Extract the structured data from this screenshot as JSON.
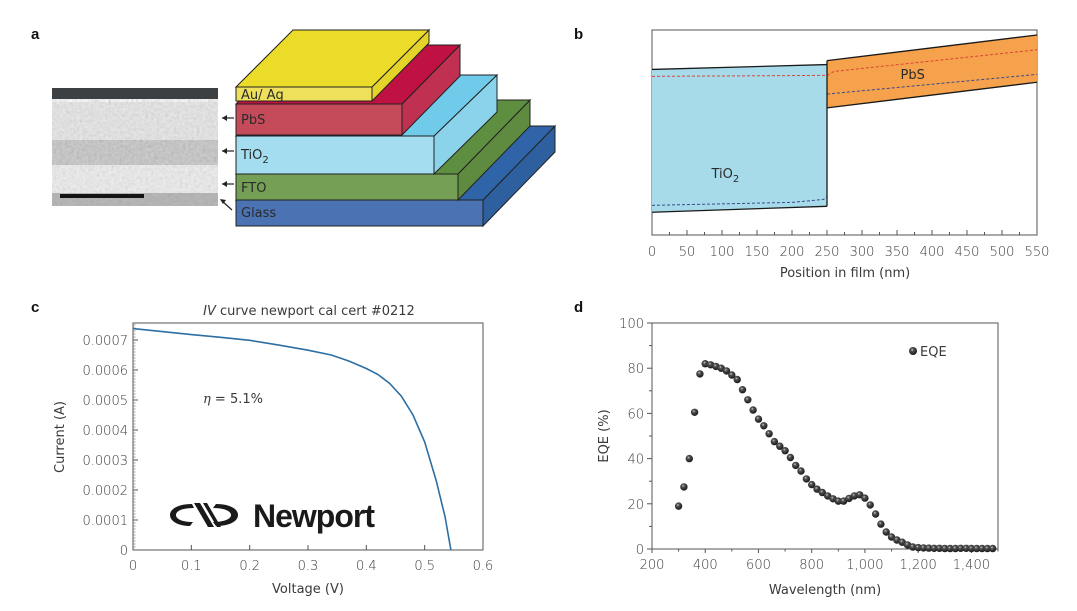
{
  "figure": {
    "panels": [
      "a",
      "b",
      "c",
      "d"
    ]
  },
  "chart_data": [
    {
      "panel": "a",
      "type": "diagram",
      "title": "",
      "description": "SEM cross-section and layered device stack",
      "layers_top_to_bottom": [
        {
          "name": "Au/Ag",
          "label": "Au/ Ag",
          "color": "#eedd2c"
        },
        {
          "name": "PbS",
          "label": "PbS",
          "color": "#c8485a"
        },
        {
          "name": "TiO2",
          "label": "TiO",
          "subscript": "2",
          "color": "#a3dcef"
        },
        {
          "name": "FTO",
          "label": "FTO",
          "color": "#76a157"
        },
        {
          "name": "Glass",
          "label": "Glass",
          "color": "#4a74b3"
        }
      ],
      "sem_arrows": [
        "PbS",
        "TiO2",
        "FTO",
        "Glass"
      ]
    },
    {
      "panel": "b",
      "type": "area",
      "title": "",
      "xlabel": "Position in film (nm)",
      "ylabel": "",
      "xlim": [
        0,
        550
      ],
      "xticks": [
        0,
        50,
        100,
        150,
        200,
        250,
        300,
        350,
        400,
        450,
        500,
        550
      ],
      "regions": [
        {
          "name": "TiO2",
          "label": "TiO",
          "subscript": "2",
          "color": "#a7dbea",
          "x": [
            0,
            250
          ],
          "conduction_band": [
            [
              0,
              0.75
            ],
            [
              250,
              0.8
            ]
          ],
          "valence_band": [
            [
              0,
              -0.7
            ],
            [
              250,
              -0.64
            ]
          ],
          "fermi_dashed_upper": [
            [
              0,
              0.68
            ],
            [
              250,
              0.69
            ]
          ],
          "fermi_dashed_lower": [
            [
              0,
              -0.63
            ],
            [
              200,
              -0.6
            ],
            [
              245,
              -0.57
            ],
            [
              250,
              -0.54
            ]
          ]
        },
        {
          "name": "PbS",
          "label": "PbS",
          "color": "#f6a14b",
          "x": [
            250,
            550
          ],
          "conduction_band": [
            [
              250,
              0.84
            ],
            [
              550,
              1.1
            ]
          ],
          "valence_band": [
            [
              250,
              0.36
            ],
            [
              550,
              0.62
            ]
          ],
          "fermi_dashed_upper": [
            [
              250,
              0.69
            ],
            [
              260,
              0.73
            ],
            [
              550,
              0.95
            ]
          ],
          "fermi_dashed_lower": [
            [
              250,
              0.5
            ],
            [
              550,
              0.7
            ]
          ]
        }
      ],
      "ylim": [
        -0.85,
        1.1
      ]
    },
    {
      "panel": "c",
      "type": "line",
      "title_italic": "IV",
      "title": " curve newport cal cert #0212",
      "xlabel": "Voltage (V)",
      "ylabel": "Current (A)",
      "xlim": [
        0,
        0.6
      ],
      "ylim": [
        0,
        0.00075
      ],
      "xticks": [
        "0",
        "0.1",
        "0.2",
        "0.3",
        "0.4",
        "0.5",
        "0.6"
      ],
      "yticks": [
        "0",
        "0.0001",
        "0.0002",
        "0.0003",
        "0.0004",
        "0.0005",
        "0.0006",
        "0.0007"
      ],
      "series": [
        {
          "name": "IV curve",
          "color": "#2e6fa3",
          "x": [
            0,
            0.05,
            0.1,
            0.15,
            0.2,
            0.25,
            0.3,
            0.34,
            0.37,
            0.4,
            0.42,
            0.44,
            0.46,
            0.48,
            0.5,
            0.52,
            0.535,
            0.545
          ],
          "y": [
            0.000738,
            0.000728,
            0.000718,
            0.000709,
            0.000699,
            0.000683,
            0.000666,
            0.00065,
            0.00063,
            0.000605,
            0.000585,
            0.000555,
            0.000513,
            0.00045,
            0.00036,
            0.00023,
            0.00011,
            0.0
          ]
        }
      ],
      "annotation": {
        "symbol": "η",
        "text": " = 5.1%"
      },
      "logo": "Newport"
    },
    {
      "panel": "d",
      "type": "scatter",
      "title": "",
      "xlabel": "Wavelength (nm)",
      "ylabel": "EQE (%)",
      "xlim": [
        200,
        1500
      ],
      "ylim": [
        0,
        100
      ],
      "xticks": [
        "200",
        "400",
        "600",
        "800",
        "1,000",
        "1,200",
        "1,400"
      ],
      "yticks": [
        "0",
        "20",
        "40",
        "60",
        "80",
        "100"
      ],
      "legend": {
        "label": "EQE",
        "position": "top-right"
      },
      "series": [
        {
          "name": "EQE",
          "x": [
            300,
            320,
            340,
            360,
            380,
            400,
            420,
            440,
            460,
            480,
            500,
            520,
            540,
            560,
            580,
            600,
            620,
            640,
            660,
            680,
            700,
            720,
            740,
            760,
            780,
            800,
            820,
            840,
            860,
            880,
            900,
            920,
            940,
            960,
            980,
            1000,
            1020,
            1040,
            1060,
            1080,
            1100,
            1120,
            1140,
            1160,
            1180,
            1200,
            1220,
            1240,
            1260,
            1280,
            1300,
            1320,
            1340,
            1360,
            1380,
            1400,
            1420,
            1440,
            1460,
            1480
          ],
          "y": [
            19,
            27.5,
            40,
            60.5,
            77.5,
            82,
            81.5,
            80.8,
            80,
            78.8,
            77,
            75,
            70.5,
            66,
            61.5,
            57.5,
            54.5,
            51,
            47.5,
            45.5,
            43.5,
            40.5,
            37,
            34.5,
            31,
            28.5,
            26.5,
            25,
            23.5,
            22.2,
            21.2,
            21.2,
            22.4,
            23.5,
            24,
            22.5,
            19.5,
            15.5,
            11,
            7.5,
            5.3,
            4,
            3,
            1.8,
            0.9,
            0.6,
            0.5,
            0.4,
            0.3,
            0.3,
            0.2,
            0.2,
            0.2,
            0.3,
            0.3,
            0.2,
            0.2,
            0.2,
            0.2,
            0.2
          ]
        }
      ]
    }
  ]
}
